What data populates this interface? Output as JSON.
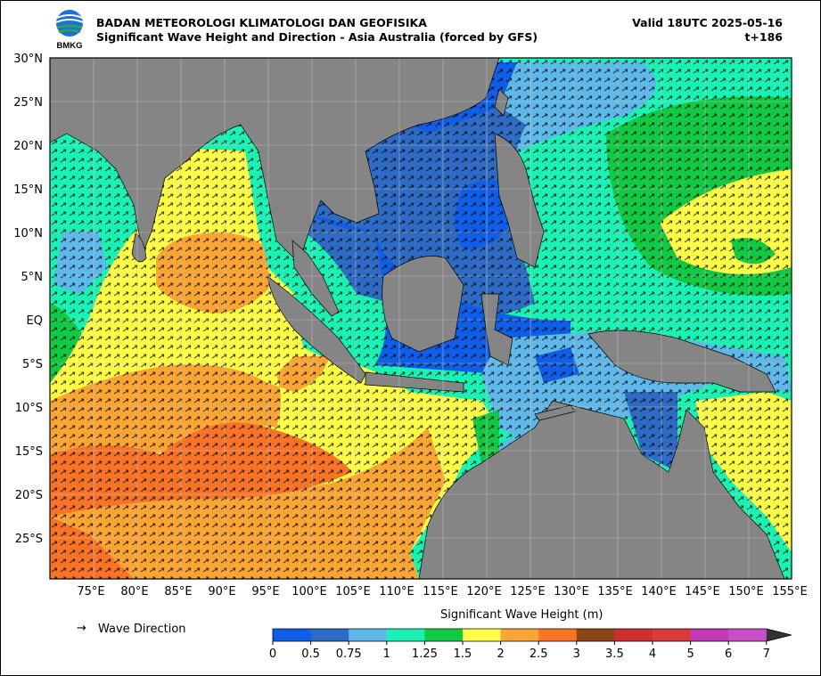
{
  "header": {
    "agency": "BADAN METEOROLOGI KLIMATOLOGI DAN GEOFISIKA",
    "product": "Significant Wave Height and Direction - Asia Australia (forced by GFS)",
    "valid": "Valid 18UTC 2025-05-16",
    "lead": "t+186",
    "logo_text": "BMKG"
  },
  "map": {
    "lat_labels": [
      "30°N",
      "25°N",
      "20°N",
      "15°N",
      "10°N",
      "5°N",
      "EQ",
      "5°S",
      "10°S",
      "15°S",
      "20°S",
      "25°S"
    ],
    "lon_labels": [
      "75°E",
      "80°E",
      "85°E",
      "90°E",
      "95°E",
      "100°E",
      "105°E",
      "110°E",
      "115°E",
      "120°E",
      "125°E",
      "130°E",
      "135°E",
      "140°E",
      "145°E",
      "150°E",
      "155°E"
    ],
    "lat_range": [
      -29.5,
      30
    ],
    "lon_range": [
      70,
      155
    ],
    "grid": true,
    "land_color": "#858585",
    "arrow_color": "#000000"
  },
  "legend": {
    "arrow_symbol": "→",
    "arrow_label": "Wave Direction"
  },
  "colorbar": {
    "title": "Significant Wave Height (m)",
    "ticks": [
      "0",
      "0.5",
      "0.75",
      "1",
      "1.25",
      "1.5",
      "2",
      "2.5",
      "3",
      "3.5",
      "4",
      "5",
      "6",
      "7"
    ],
    "colors": [
      "#0f5ee8",
      "#2d6bc4",
      "#5fb8ea",
      "#19f2b3",
      "#12c943",
      "#ffff47",
      "#fba535",
      "#fb7327",
      "#8b4513",
      "#d02f2f",
      "#d93a3a",
      "#c23ab8",
      "#c94fc9"
    ],
    "extend_color": "#333333"
  }
}
